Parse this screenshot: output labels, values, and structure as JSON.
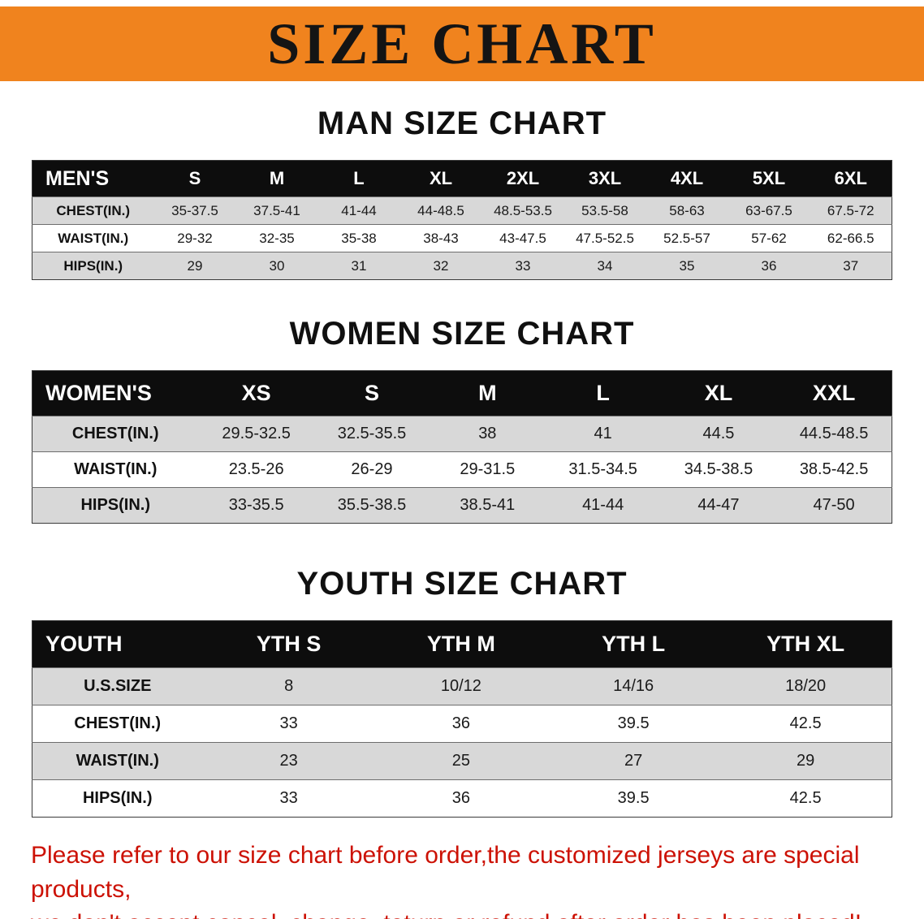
{
  "banner": {
    "title": "SIZE CHART",
    "bg_color": "#f0831e"
  },
  "men": {
    "heading": "MAN SIZE CHART",
    "header": [
      "MEN'S",
      "S",
      "M",
      "L",
      "XL",
      "2XL",
      "3XL",
      "4XL",
      "5XL",
      "6XL"
    ],
    "rows": [
      [
        "CHEST(IN.)",
        "35-37.5",
        "37.5-41",
        "41-44",
        "44-48.5",
        "48.5-53.5",
        "53.5-58",
        "58-63",
        "63-67.5",
        "67.5-72"
      ],
      [
        "WAIST(IN.)",
        "29-32",
        "32-35",
        "35-38",
        "38-43",
        "43-47.5",
        "47.5-52.5",
        "52.5-57",
        "57-62",
        "62-66.5"
      ],
      [
        "HIPS(IN.)",
        "29",
        "30",
        "31",
        "32",
        "33",
        "34",
        "35",
        "36",
        "37"
      ]
    ]
  },
  "women": {
    "heading": "WOMEN SIZE CHART",
    "header": [
      "WOMEN'S",
      "XS",
      "S",
      "M",
      "L",
      "XL",
      "XXL"
    ],
    "rows": [
      [
        "CHEST(IN.)",
        "29.5-32.5",
        "32.5-35.5",
        "38",
        "41",
        "44.5",
        "44.5-48.5"
      ],
      [
        "WAIST(IN.)",
        "23.5-26",
        "26-29",
        "29-31.5",
        "31.5-34.5",
        "34.5-38.5",
        "38.5-42.5"
      ],
      [
        "HIPS(IN.)",
        "33-35.5",
        "35.5-38.5",
        "38.5-41",
        "41-44",
        "44-47",
        "47-50"
      ]
    ]
  },
  "youth": {
    "heading": "YOUTH SIZE CHART",
    "header": [
      "YOUTH",
      "YTH S",
      "YTH M",
      "YTH L",
      "YTH XL"
    ],
    "rows": [
      [
        "U.S.SIZE",
        "8",
        "10/12",
        "14/16",
        "18/20"
      ],
      [
        "CHEST(IN.)",
        "33",
        "36",
        "39.5",
        "42.5"
      ],
      [
        "WAIST(IN.)",
        "23",
        "25",
        "27",
        "29"
      ],
      [
        "HIPS(IN.)",
        "33",
        "36",
        "39.5",
        "42.5"
      ]
    ]
  },
  "disclaimer": {
    "line1": "Please refer to our size chart before order,the customized jerseys are special products,",
    "line2": "we don't accept cancel, change, teturn or refund after order has been placed!",
    "text_color": "#cc1104"
  }
}
